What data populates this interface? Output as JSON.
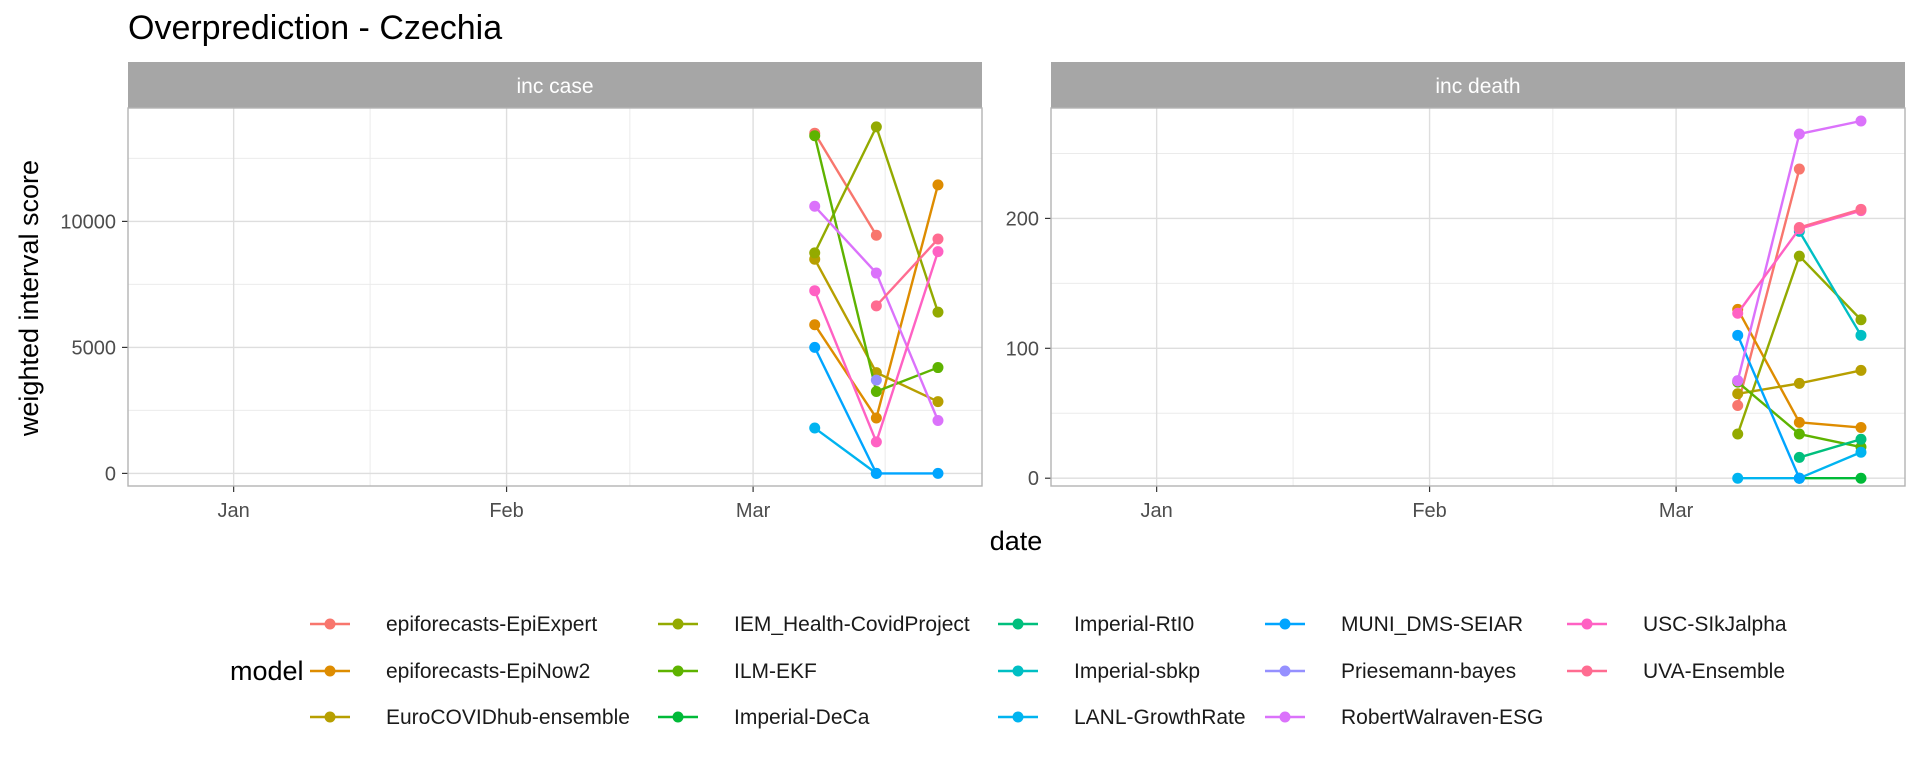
{
  "chart_data": {
    "type": "line",
    "title": "Overprediction - Czechia",
    "xlabel": "date",
    "ylabel": "weighted interval score",
    "x_ticks": [
      "Jan",
      "Feb",
      "Mar"
    ],
    "x_dates": [
      "2021-03-08",
      "2021-03-15",
      "2021-03-22"
    ],
    "grid": true,
    "legend": {
      "title": "model",
      "position": "bottom",
      "entries": [
        {
          "name": "epiforecasts-EpiExpert",
          "color": "#F8766D"
        },
        {
          "name": "epiforecasts-EpiNow2",
          "color": "#DE8C00"
        },
        {
          "name": "EuroCOVIDhub-ensemble",
          "color": "#B79F00"
        },
        {
          "name": "IEM_Health-CovidProject",
          "color": "#93AA00"
        },
        {
          "name": "ILM-EKF",
          "color": "#5EB300"
        },
        {
          "name": "Imperial-DeCa",
          "color": "#00BA38"
        },
        {
          "name": "Imperial-RtI0",
          "color": "#00BF7D"
        },
        {
          "name": "Imperial-sbkp",
          "color": "#00BFC4"
        },
        {
          "name": "LANL-GrowthRate",
          "color": "#00B4F0"
        },
        {
          "name": "MUNI_DMS-SEIAR",
          "color": "#00A5FF"
        },
        {
          "name": "Priesemann-bayes",
          "color": "#9590FF"
        },
        {
          "name": "RobertWalraven-ESG",
          "color": "#DB72FB"
        },
        {
          "name": "USC-SIkJalpha",
          "color": "#FF61C3"
        },
        {
          "name": "UVA-Ensemble",
          "color": "#FF6C91"
        }
      ]
    },
    "panels": [
      {
        "label": "inc case",
        "ylim": [
          -500,
          14500
        ],
        "y_ticks": [
          0,
          5000,
          10000
        ],
        "y_tick_labels": [
          "0",
          "5000",
          "10000"
        ],
        "series": [
          {
            "name": "epiforecasts-EpiExpert",
            "values": [
              13500,
              9450,
              null
            ]
          },
          {
            "name": "epiforecasts-EpiNow2",
            "values": [
              5900,
              2200,
              11450
            ]
          },
          {
            "name": "EuroCOVIDhub-ensemble",
            "values": [
              8500,
              4000,
              2850
            ]
          },
          {
            "name": "IEM_Health-CovidProject",
            "values": [
              8750,
              13750,
              6400
            ]
          },
          {
            "name": "ILM-EKF",
            "values": [
              13400,
              3250,
              4200
            ]
          },
          {
            "name": "LANL-GrowthRate",
            "values": [
              1800,
              0,
              null
            ]
          },
          {
            "name": "MUNI_DMS-SEIAR",
            "values": [
              5000,
              0,
              0
            ]
          },
          {
            "name": "Priesemann-bayes",
            "values": [
              null,
              3700,
              null
            ]
          },
          {
            "name": "RobertWalraven-ESG",
            "values": [
              10600,
              7950,
              2100
            ]
          },
          {
            "name": "USC-SIkJalpha",
            "values": [
              7250,
              1250,
              8800
            ]
          },
          {
            "name": "UVA-Ensemble",
            "values": [
              null,
              6650,
              9300
            ]
          }
        ]
      },
      {
        "label": "inc death",
        "ylim": [
          -6,
          285
        ],
        "y_ticks": [
          0,
          100,
          200
        ],
        "y_tick_labels": [
          "0",
          "100",
          "200"
        ],
        "series": [
          {
            "name": "epiforecasts-EpiExpert",
            "values": [
              56,
              238,
              null
            ]
          },
          {
            "name": "epiforecasts-EpiNow2",
            "values": [
              130,
              43,
              39
            ]
          },
          {
            "name": "EuroCOVIDhub-ensemble",
            "values": [
              65,
              73,
              83
            ]
          },
          {
            "name": "IEM_Health-CovidProject",
            "values": [
              34,
              171,
              122
            ]
          },
          {
            "name": "ILM-EKF",
            "values": [
              74,
              34,
              24
            ]
          },
          {
            "name": "Imperial-DeCa",
            "values": [
              null,
              0,
              0
            ]
          },
          {
            "name": "Imperial-RtI0",
            "values": [
              null,
              16,
              30
            ]
          },
          {
            "name": "Imperial-sbkp",
            "values": [
              null,
              190,
              110
            ]
          },
          {
            "name": "LANL-GrowthRate",
            "values": [
              0,
              0,
              20
            ]
          },
          {
            "name": "MUNI_DMS-SEIAR",
            "values": [
              110,
              0,
              null
            ]
          },
          {
            "name": "Priesemann-bayes",
            "values": [
              75,
              null,
              null
            ]
          },
          {
            "name": "RobertWalraven-ESG",
            "values": [
              75,
              265,
              275
            ]
          },
          {
            "name": "USC-SIkJalpha",
            "values": [
              127,
              192,
              206
            ]
          },
          {
            "name": "UVA-Ensemble",
            "values": [
              null,
              193,
              207
            ]
          }
        ]
      }
    ]
  }
}
